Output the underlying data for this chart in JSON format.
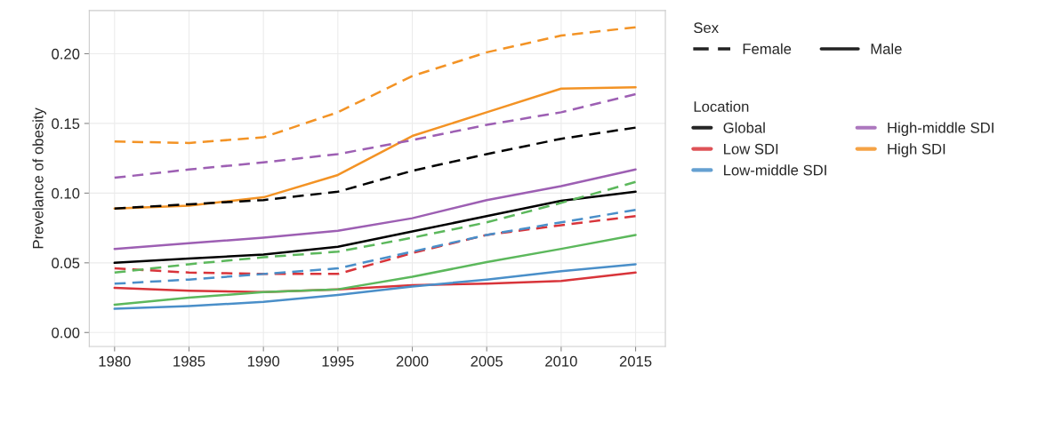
{
  "chart_data": {
    "type": "line",
    "ylabel": "Prevelance of obesity",
    "legend_title": "Location",
    "legend": "right",
    "grid": true,
    "x": [
      1980,
      1985,
      1990,
      1995,
      2000,
      2005,
      2010,
      2015
    ],
    "xlim": [
      1978.3,
      2017
    ],
    "xticks": [
      1980,
      1985,
      1990,
      1995,
      2000,
      2005,
      2010,
      2015
    ],
    "ylim": [
      -0.01,
      0.231
    ],
    "yticks": [
      {
        "value": 0,
        "label": "0.00"
      },
      0.05,
      {
        "value": 0.1,
        "label": "0.10"
      },
      0.15,
      {
        "value": 0.2,
        "label": "0.20"
      }
    ],
    "annotations": [
      "Sex",
      "Female",
      "Male"
    ],
    "series": [
      {
        "color": "#000000",
        "line_style": "dashed",
        "values": [
          0.089,
          0.092,
          0.095,
          0.101,
          0.116,
          0.128,
          0.139,
          0.147
        ]
      },
      {
        "name": "Global",
        "color": "#000000",
        "line_style": "solid",
        "values": [
          0.05,
          0.053,
          0.056,
          0.0615,
          0.0725,
          0.0835,
          0.0945,
          0.101
        ]
      },
      {
        "color": "#d8343a",
        "line_style": "dashed",
        "values": [
          0.046,
          0.043,
          0.042,
          0.042,
          0.057,
          0.07,
          0.077,
          0.0835
        ]
      },
      {
        "name": "Low SDI",
        "color": "#d8343a",
        "line_style": "solid",
        "values": [
          0.032,
          0.03,
          0.029,
          0.031,
          0.034,
          0.035,
          0.037,
          0.043
        ]
      },
      {
        "color": "#4a8fc9",
        "line_style": "dashed",
        "values": [
          0.035,
          0.038,
          0.042,
          0.046,
          0.058,
          0.07,
          0.079,
          0.088
        ]
      },
      {
        "name": "Low-middle SDI",
        "color": "#4a8fc9",
        "line_style": "solid",
        "values": [
          0.017,
          0.019,
          0.022,
          0.027,
          0.033,
          0.038,
          0.044,
          0.049
        ]
      },
      {
        "color": "#9d5fb3",
        "line_style": "dashed",
        "values": [
          0.111,
          0.117,
          0.122,
          0.128,
          0.138,
          0.149,
          0.158,
          0.171
        ]
      },
      {
        "name": "High-middle SDI",
        "color": "#9d5fb3",
        "line_style": "solid",
        "values": [
          0.06,
          0.064,
          0.068,
          0.073,
          0.082,
          0.095,
          0.105,
          0.117
        ]
      },
      {
        "color": "#f39325",
        "line_style": "dashed",
        "values": [
          0.137,
          0.136,
          0.14,
          0.158,
          0.184,
          0.201,
          0.213,
          0.219
        ]
      },
      {
        "name": "High SDI",
        "color": "#f39325",
        "line_style": "solid",
        "values": [
          0.089,
          0.091,
          0.097,
          0.113,
          0.141,
          0.158,
          0.175,
          0.176
        ]
      },
      {
        "color": "#5cb85c",
        "line_style": "dashed",
        "values": [
          0.043,
          0.049,
          0.054,
          0.058,
          0.068,
          0.079,
          0.093,
          0.108
        ]
      },
      {
        "color": "#5cb85c",
        "line_style": "solid",
        "values": [
          0.02,
          0.025,
          0.029,
          0.031,
          0.04,
          0.0505,
          0.06,
          0.07
        ]
      }
    ]
  }
}
